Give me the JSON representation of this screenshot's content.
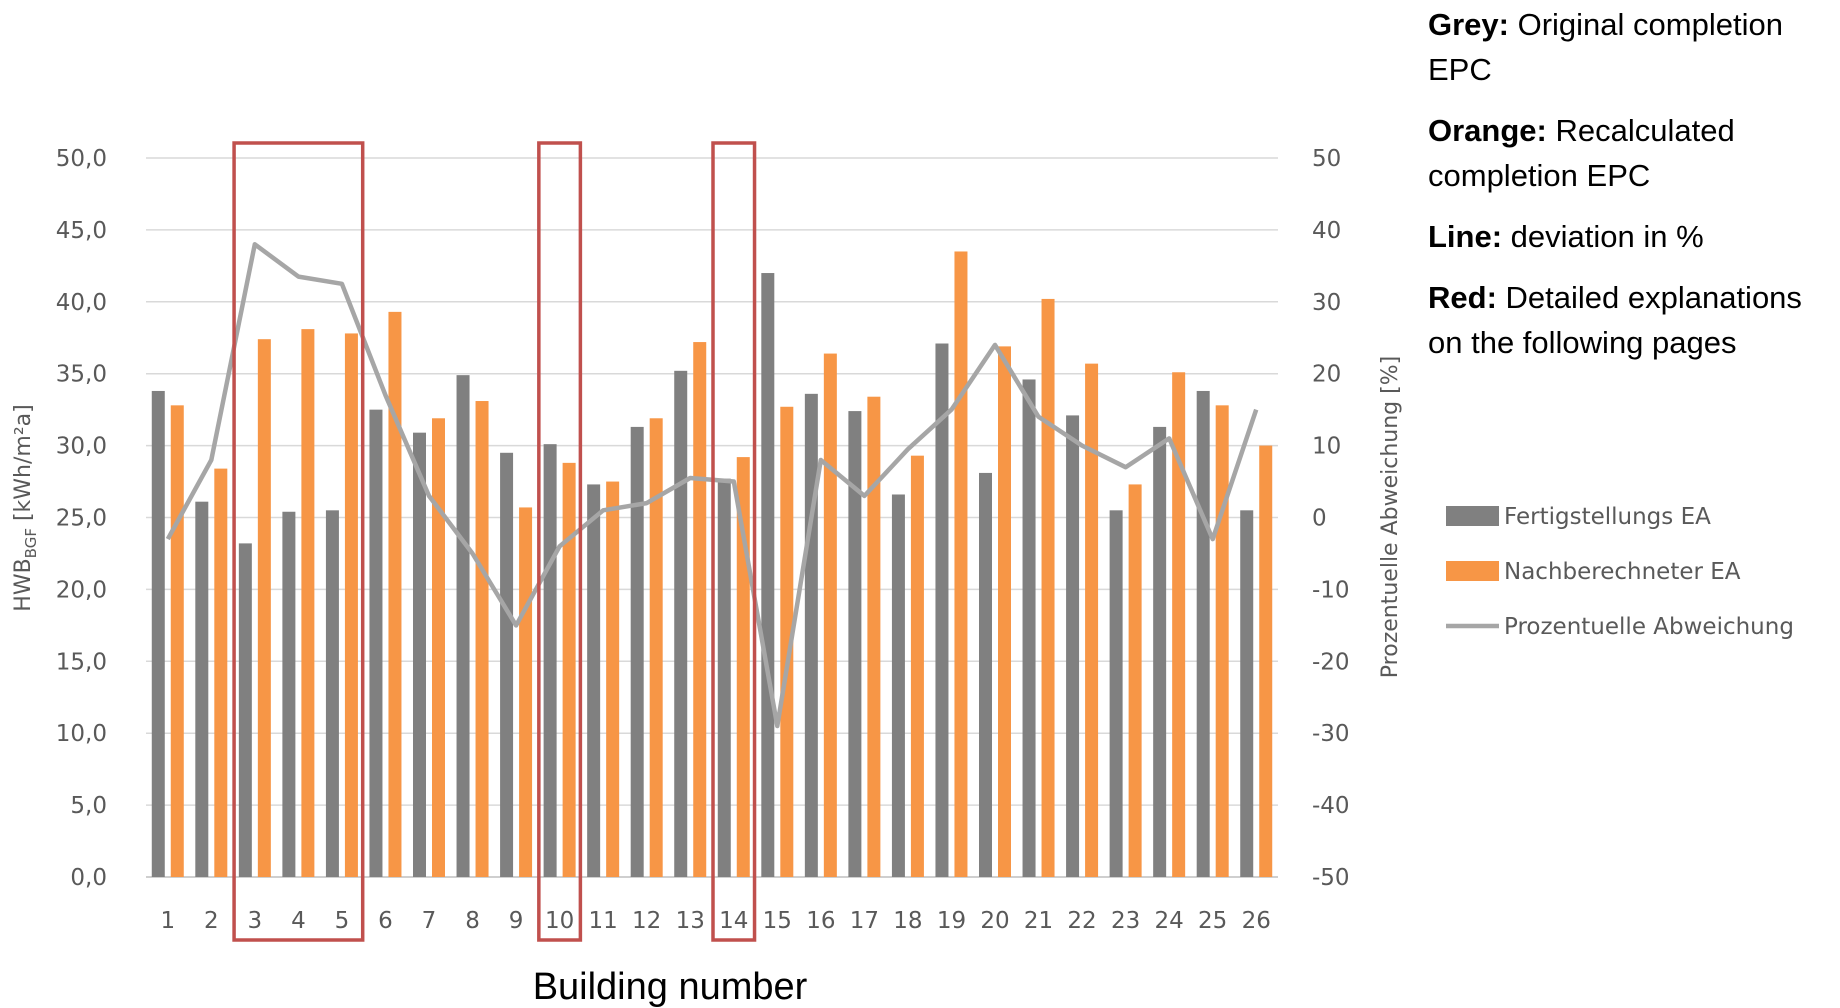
{
  "chart_data": {
    "type": "bar",
    "xlabel": "Building number",
    "ylabel_main": "HWB",
    "ylabel_sub": "BGF",
    "ylabel_unit": " [kWh/m²a]",
    "y2label": "Prozentuelle Abweichung [%]",
    "ylim": [
      0,
      50
    ],
    "y2lim": [
      -50,
      50
    ],
    "yticks": [
      "0,0",
      "5,0",
      "10,0",
      "15,0",
      "20,0",
      "25,0",
      "30,0",
      "35,0",
      "40,0",
      "45,0",
      "50,0"
    ],
    "y2ticks": [
      "-50",
      "-40",
      "-30",
      "-20",
      "-10",
      "0",
      "10",
      "20",
      "30",
      "40",
      "50"
    ],
    "categories": [
      "1",
      "2",
      "3",
      "4",
      "5",
      "6",
      "7",
      "8",
      "9",
      "10",
      "11",
      "12",
      "13",
      "14",
      "15",
      "16",
      "17",
      "18",
      "19",
      "20",
      "21",
      "22",
      "23",
      "24",
      "25",
      "26"
    ],
    "series": [
      {
        "name": "Fertigstellungs EA",
        "type": "bar",
        "color": "#808080",
        "values": [
          33.8,
          26.1,
          23.2,
          25.4,
          25.5,
          32.5,
          30.9,
          34.9,
          29.5,
          30.1,
          27.3,
          31.3,
          35.2,
          27.7,
          42.0,
          33.6,
          32.4,
          26.6,
          37.1,
          28.1,
          34.6,
          32.1,
          25.5,
          31.3,
          33.8,
          25.5
        ]
      },
      {
        "name": "Nachberechneter EA",
        "type": "bar",
        "color": "#F79646",
        "values": [
          32.8,
          28.4,
          37.4,
          38.1,
          37.8,
          39.3,
          31.9,
          33.1,
          25.7,
          28.8,
          27.5,
          31.9,
          37.2,
          29.2,
          32.7,
          36.4,
          33.4,
          29.3,
          43.5,
          36.9,
          40.2,
          35.7,
          27.3,
          35.1,
          32.8,
          30.0
        ]
      },
      {
        "name": "Prozentuelle Abweichung",
        "type": "line",
        "axis": "secondary",
        "color": "#A6A6A6",
        "values": [
          -3.0,
          8.0,
          38.0,
          33.5,
          32.5,
          17.0,
          3.0,
          -5.0,
          -15.0,
          -4.0,
          1.0,
          2.0,
          5.5,
          5.0,
          -29.0,
          8.0,
          3.0,
          9.5,
          15.0,
          24.0,
          14.0,
          10.0,
          7.0,
          11.0,
          -3.0,
          15.0
        ]
      }
    ],
    "highlight_boxes": [
      {
        "from": "3",
        "to": "5",
        "color": "#C0504D"
      },
      {
        "from": "10",
        "to": "10",
        "color": "#C0504D"
      },
      {
        "from": "14",
        "to": "14",
        "color": "#C0504D"
      }
    ],
    "legend_position": "right"
  },
  "notes": [
    {
      "label": "Grey:",
      "text": " Original completion EPC"
    },
    {
      "label": "Orange:",
      "text": " Recalculated completion EPC"
    },
    {
      "label": "Line:",
      "text": " deviation in %"
    },
    {
      "label": "Red:",
      "text": " Detailed explanations on the following pages"
    }
  ]
}
